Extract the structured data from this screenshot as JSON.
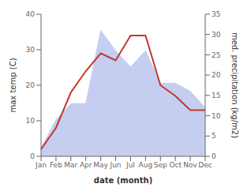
{
  "chart_data": {
    "type": "line",
    "xlabel": "date (month)",
    "ylabel": "max temp (C)",
    "y2label": "med. precipitation (kg/m2)",
    "categories": [
      "Jan",
      "Feb",
      "Mar",
      "Apr",
      "May",
      "Jun",
      "Jul",
      "Aug",
      "Sep",
      "Oct",
      "Nov",
      "Dec"
    ],
    "series": [
      {
        "type": "area",
        "axis": "y2",
        "color": "#c5cdf0",
        "values": [
          2,
          9,
          13,
          13,
          31,
          26,
          22,
          26,
          18,
          18,
          16,
          12
        ]
      },
      {
        "type": "line",
        "color": "#c0392b",
        "values": [
          2,
          8,
          18,
          24,
          29,
          27,
          34,
          34,
          20,
          17,
          13,
          13
        ]
      }
    ],
    "ylim": [
      0,
      40
    ],
    "yticks": [
      0,
      10,
      20,
      30,
      40
    ],
    "y2lim": [
      0,
      35
    ],
    "y2ticks": [
      0,
      5,
      10,
      15,
      20,
      25,
      30,
      35
    ],
    "grid": false
  }
}
